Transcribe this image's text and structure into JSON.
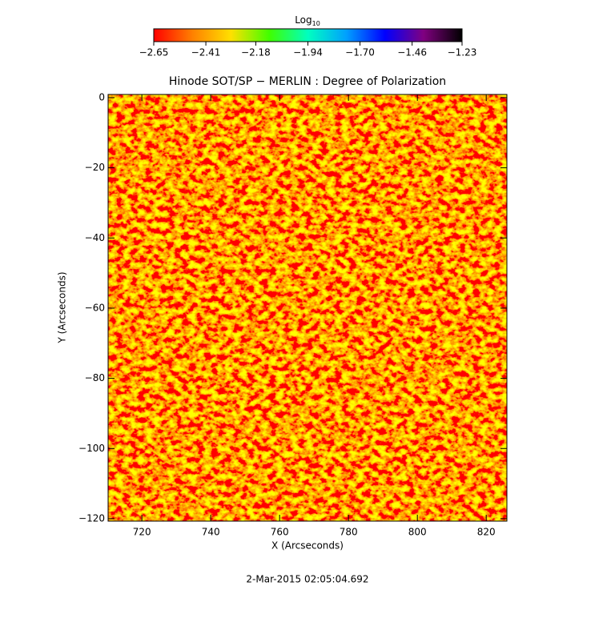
{
  "chart_data": {
    "type": "heatmap",
    "title": "Hinode SOT/SP − MERLIN : Degree of Polarization",
    "x_label": "X (Arcseconds)",
    "y_label": "Y (Arcseconds)",
    "footer": "2-Mar-2015 02:05:04.692",
    "xlim": [
      710.2,
      826.0
    ],
    "ylim": [
      -120.7,
      0.9
    ],
    "xticks": [
      720,
      740,
      760,
      780,
      800,
      820
    ],
    "yticks": [
      0,
      {
        "value": -20,
        "label": "−20"
      },
      {
        "value": -40,
        "label": "−40"
      },
      {
        "value": -60,
        "label": "−60"
      },
      {
        "value": -80,
        "label": "−80"
      },
      {
        "value": -100,
        "label": "−100"
      },
      {
        "value": -120,
        "label": "−120"
      }
    ],
    "colorbar": {
      "label": "Log",
      "label_subscript": "10",
      "clim": [
        -2.65,
        -1.23
      ],
      "ticks": [
        {
          "value": -2.65,
          "label": "−2.65"
        },
        {
          "value": -2.41,
          "label": "−2.41"
        },
        {
          "value": -2.18,
          "label": "−2.18"
        },
        {
          "value": -1.94,
          "label": "−1.94"
        },
        {
          "value": -1.7,
          "label": "−1.70"
        },
        {
          "value": -1.46,
          "label": "−1.46"
        },
        {
          "value": -1.23,
          "label": "−1.23"
        }
      ],
      "colors": [
        "#ff0000",
        "#ff8000",
        "#ffe000",
        "#40ff00",
        "#00ffc0",
        "#00a0ff",
        "#0000ff",
        "#800080",
        "#000000"
      ]
    }
  }
}
